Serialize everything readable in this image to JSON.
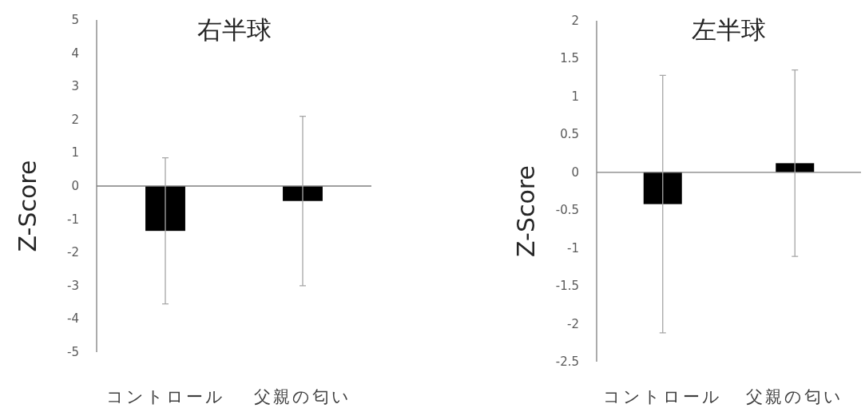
{
  "chart_data": [
    {
      "type": "bar",
      "title": "右半球",
      "ylabel": "Z-Score",
      "categories": [
        "コントロール",
        "父親の匂い"
      ],
      "series": [
        {
          "color": "#000000",
          "values": [
            -1.35,
            -0.45
          ],
          "errors": [
            2.2,
            2.55
          ]
        }
      ],
      "ylim": [
        -5,
        5
      ],
      "yticks": [
        -5,
        -4,
        -3,
        -2,
        -1,
        0,
        1,
        2,
        3,
        4,
        5
      ]
    },
    {
      "type": "bar",
      "title": "左半球",
      "ylabel": "Z-Score",
      "categories": [
        "コントロール",
        "父親の匂い"
      ],
      "series": [
        {
          "color": "#000000",
          "values": [
            -0.42,
            0.12
          ],
          "errors": [
            1.7,
            1.23
          ]
        }
      ],
      "ylim": [
        -2.5,
        2
      ],
      "yticks": [
        -2.5,
        -2,
        -1.5,
        -1,
        -0.5,
        0,
        0.5,
        1,
        1.5,
        2
      ]
    }
  ]
}
